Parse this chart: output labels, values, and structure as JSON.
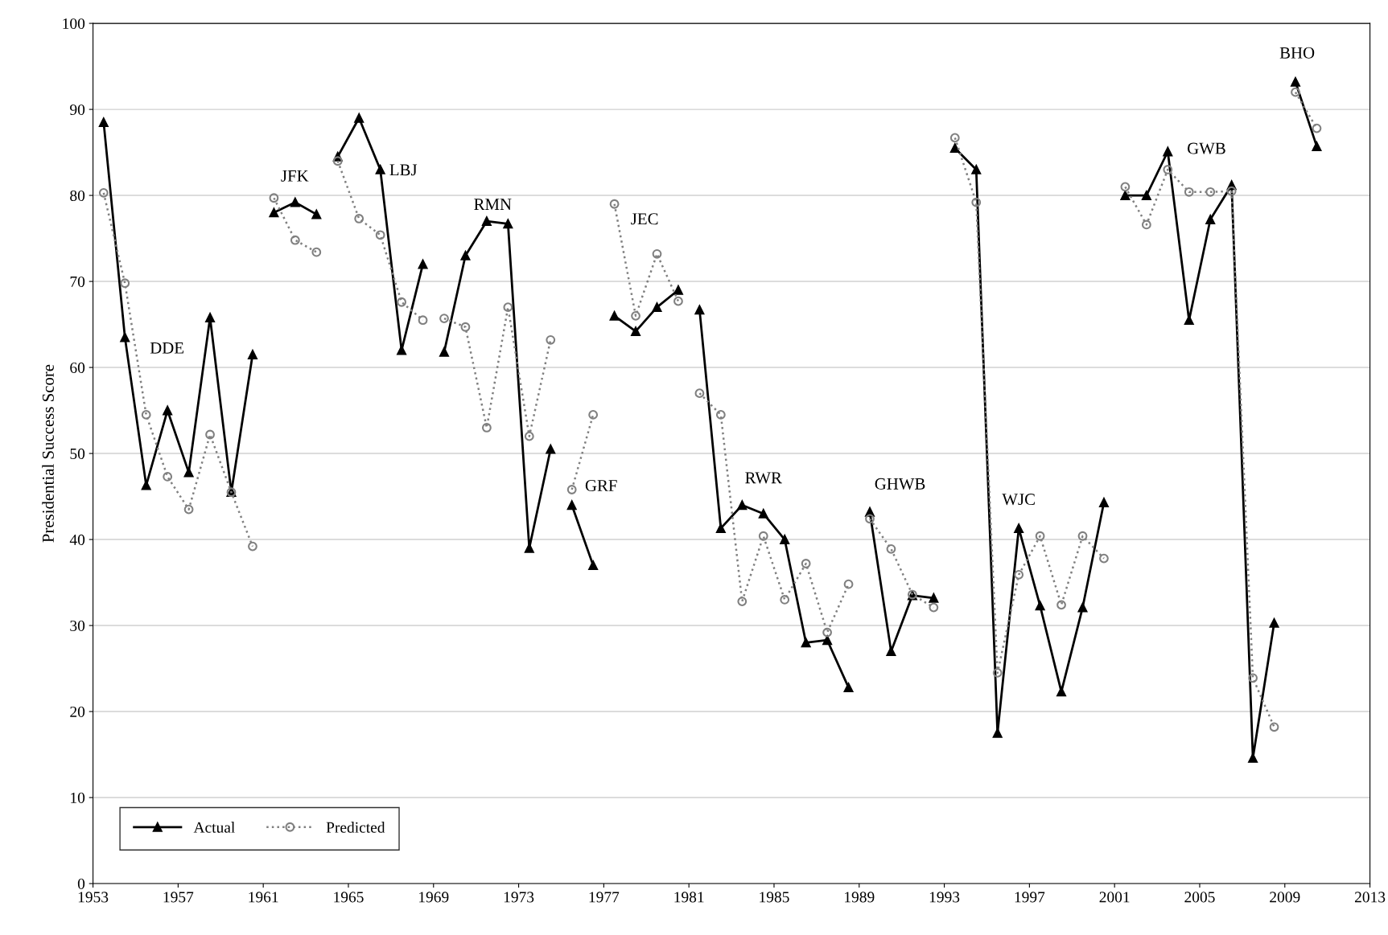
{
  "chart_data": {
    "type": "line",
    "ylabel": "Presidential Success Score",
    "x": [
      1953.5,
      1954.5,
      1955.5,
      1956.5,
      1957.5,
      1958.5,
      1959.5,
      1960.5,
      1961,
      1961.5,
      1962.5,
      1963.5,
      1964,
      1964.5,
      1965.5,
      1966.5,
      1967.5,
      1968.5,
      1969,
      1969.5,
      1970.5,
      1971.5,
      1972.5,
      1973.5,
      1974.5,
      1975,
      1975.5,
      1976.5,
      1977,
      1977.5,
      1978.5,
      1979.5,
      1980.5,
      1981,
      1981.5,
      1982.5,
      1983.5,
      1984.5,
      1985.5,
      1986.5,
      1987.5,
      1988.5,
      1989,
      1989.5,
      1990.5,
      1991.5,
      1992.5,
      1993,
      1993.5,
      1994.5,
      1995.5,
      1996.5,
      1997.5,
      1998.5,
      1999.5,
      2000.5,
      2001,
      2001.5,
      2002.5,
      2003.5,
      2004.5,
      2005.5,
      2006.5,
      2007.5,
      2008.5,
      2009,
      2009.5,
      2010.5
    ],
    "series": [
      {
        "name": "Actual",
        "color": "#000000",
        "marker": "triangle",
        "line_style": "solid",
        "values": [
          88.5,
          63.5,
          46.3,
          55,
          47.8,
          65.8,
          45.5,
          61.5,
          null,
          78,
          79.2,
          77.8,
          null,
          84.5,
          89,
          83,
          62,
          72,
          null,
          61.8,
          73,
          77,
          76.7,
          39,
          50.5,
          null,
          44,
          37,
          null,
          66,
          64.2,
          67,
          69,
          null,
          66.7,
          41.3,
          44,
          43,
          40,
          28,
          28.3,
          22.8,
          null,
          43.2,
          27,
          33.5,
          33.2,
          null,
          85.5,
          83,
          17.5,
          41.3,
          32.3,
          22.3,
          32.1,
          44.3,
          null,
          80,
          80,
          85.1,
          65.5,
          77.2,
          81.2,
          14.6,
          30.3,
          null,
          93.2,
          85.7
        ]
      },
      {
        "name": "Predicted",
        "color": "#808080",
        "marker": "circle",
        "line_style": "dotted",
        "values": [
          80.3,
          69.8,
          54.5,
          47.3,
          43.5,
          52.2,
          45.5,
          39.2,
          null,
          79.7,
          74.8,
          73.4,
          null,
          84,
          77.3,
          75.4,
          67.6,
          65.5,
          null,
          65.7,
          64.7,
          53,
          67,
          52,
          63.2,
          null,
          45.8,
          54.5,
          null,
          79,
          66,
          73.2,
          67.7,
          null,
          57,
          54.5,
          32.8,
          40.4,
          33,
          37.2,
          29.2,
          34.8,
          null,
          42.4,
          38.9,
          33.6,
          32.1,
          null,
          86.7,
          79.2,
          24.5,
          35.9,
          40.4,
          32.4,
          40.4,
          37.8,
          null,
          81,
          76.6,
          83,
          80.4,
          80.4,
          80.5,
          23.9,
          18.2,
          null,
          92,
          87.8
        ]
      }
    ],
    "annotations": [
      "DDE",
      "JFK",
      "LBJ",
      "RMN",
      "GRF",
      "JEC",
      "RWR",
      "GHWB",
      "WJC",
      "GWB",
      "BHO"
    ],
    "xlim": [
      1953,
      2013
    ],
    "xticks": [
      1953,
      1957,
      1961,
      1965,
      1969,
      1973,
      1977,
      1981,
      1985,
      1989,
      1993,
      1997,
      2001,
      2005,
      2009,
      2013
    ],
    "ylim": [
      0,
      100
    ],
    "yticks": [
      0,
      10,
      20,
      30,
      40,
      50,
      60,
      70,
      80,
      90,
      100
    ],
    "grid": "y",
    "legend": "bottom left"
  }
}
